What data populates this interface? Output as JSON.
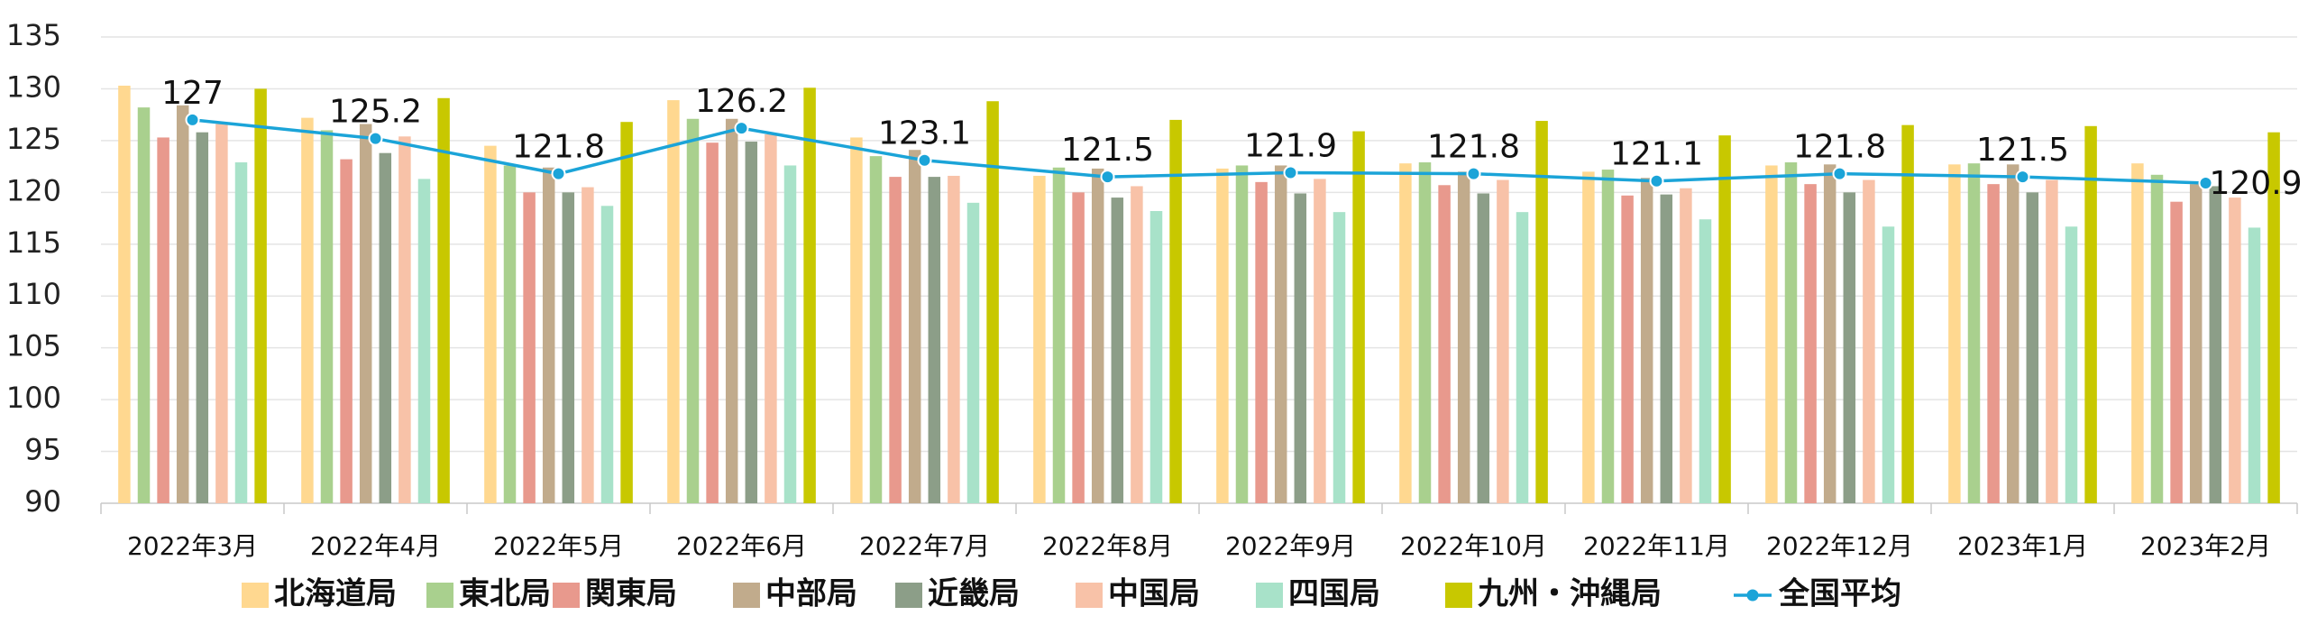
{
  "chart_data": {
    "type": "bar",
    "title": "",
    "xlabel": "",
    "ylabel": "",
    "ylim": [
      90,
      135
    ],
    "yticks": [
      90,
      95,
      100,
      105,
      110,
      115,
      120,
      125,
      130,
      135
    ],
    "grid": true,
    "legend_position": "bottom",
    "categories": [
      "2022年3月",
      "2022年4月",
      "2022年5月",
      "2022年6月",
      "2022年7月",
      "2022年8月",
      "2022年9月",
      "2022年10月",
      "2022年11月",
      "2022年12月",
      "2023年1月",
      "2023年2月"
    ],
    "series": [
      {
        "name": "北海道局",
        "color": "#FFD890",
        "values": [
          130.3,
          127.2,
          124.5,
          128.9,
          125.3,
          121.6,
          122.3,
          122.8,
          122.0,
          122.6,
          122.7,
          122.8
        ]
      },
      {
        "name": "東北局",
        "color": "#A9D08E",
        "values": [
          128.2,
          126.0,
          122.6,
          127.1,
          123.5,
          122.4,
          122.6,
          122.9,
          122.2,
          122.9,
          122.8,
          121.7
        ]
      },
      {
        "name": "関東局",
        "color": "#E8998D",
        "values": [
          125.3,
          123.2,
          120.0,
          124.8,
          121.5,
          120.0,
          121.0,
          120.7,
          119.7,
          120.8,
          120.8,
          119.1
        ]
      },
      {
        "name": "中部局",
        "color": "#C1AB8C",
        "values": [
          128.4,
          126.6,
          122.4,
          127.1,
          124.1,
          122.3,
          122.6,
          122.0,
          121.4,
          122.7,
          122.7,
          120.8
        ]
      },
      {
        "name": "近畿局",
        "color": "#8C9E88",
        "values": [
          125.8,
          123.8,
          120.0,
          124.9,
          121.5,
          119.5,
          119.9,
          119.9,
          119.8,
          120.0,
          120.0,
          120.6
        ]
      },
      {
        "name": "中国局",
        "color": "#F8C2A8",
        "values": [
          126.6,
          125.4,
          120.5,
          125.6,
          121.6,
          120.6,
          121.3,
          121.2,
          120.4,
          121.2,
          121.2,
          119.5
        ]
      },
      {
        "name": "四国局",
        "color": "#A8E2C9",
        "values": [
          122.9,
          121.3,
          118.7,
          122.6,
          119.0,
          118.2,
          118.1,
          118.1,
          117.4,
          116.7,
          116.7,
          116.6
        ]
      },
      {
        "name": "九州・沖縄局",
        "color": "#C8C800",
        "values": [
          130.0,
          129.1,
          126.8,
          130.1,
          128.8,
          127.0,
          125.9,
          126.9,
          125.5,
          126.5,
          126.4,
          125.8
        ]
      }
    ],
    "line_series": {
      "name": "全国平均",
      "color": "#1BA4D8",
      "values": [
        127,
        125.2,
        121.8,
        126.2,
        123.1,
        121.5,
        121.9,
        121.8,
        121.1,
        121.8,
        121.5,
        120.9
      ]
    },
    "data_labels": [
      "127",
      "125.2",
      "121.8",
      "126.2",
      "123.1",
      "121.5",
      "121.9",
      "121.8",
      "121.1",
      "121.8",
      "121.5",
      "120.9"
    ]
  }
}
